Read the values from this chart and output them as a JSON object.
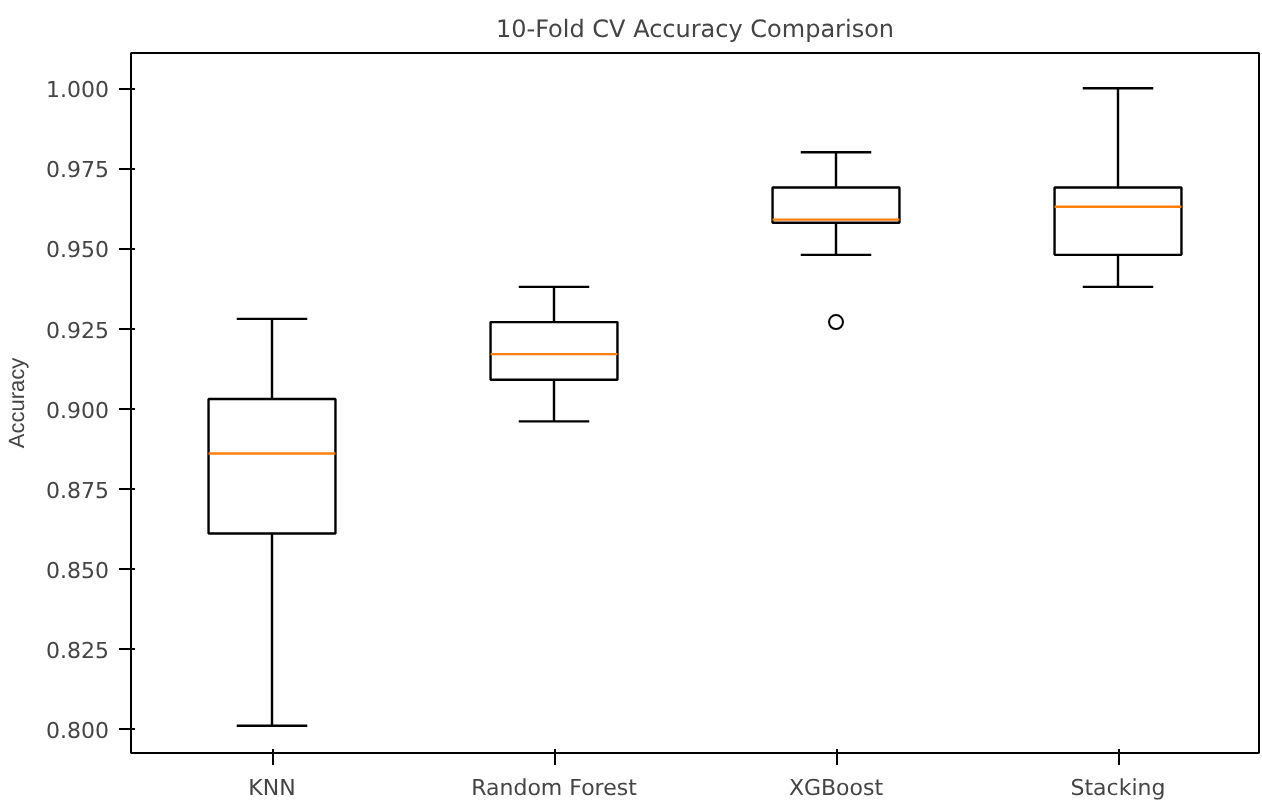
{
  "chart_data": {
    "type": "box",
    "title": "10-Fold CV Accuracy Comparison",
    "ylabel": "Accuracy",
    "categories": [
      "KNN",
      "Random Forest",
      "XGBoost",
      "Stacking"
    ],
    "boxes": [
      {
        "low": 0.801,
        "q1": 0.861,
        "median": 0.886,
        "q3": 0.903,
        "high": 0.928
      },
      {
        "low": 0.896,
        "q1": 0.909,
        "median": 0.917,
        "q3": 0.927,
        "high": 0.938
      },
      {
        "low": 0.948,
        "q1": 0.958,
        "median": 0.959,
        "q3": 0.969,
        "high": 0.98,
        "outliers": [
          0.927
        ]
      },
      {
        "low": 0.938,
        "q1": 0.948,
        "median": 0.963,
        "q3": 0.969,
        "high": 1.0
      }
    ],
    "color": "#000000",
    "ylim": [
      0.7925,
      1.011
    ],
    "yticks": [
      {
        "value": 0.8,
        "label": "0.800"
      },
      {
        "value": 0.825,
        "label": "0.825"
      },
      {
        "value": 0.85,
        "label": "0.850"
      },
      {
        "value": 0.875,
        "label": "0.875"
      },
      {
        "value": 0.9,
        "label": "0.900"
      },
      {
        "value": 0.925,
        "label": "0.925"
      },
      {
        "value": 0.95,
        "label": "0.950"
      },
      {
        "value": 0.975,
        "label": "0.975"
      },
      {
        "value": 1.0,
        "label": "1.000"
      }
    ],
    "grid": false
  }
}
